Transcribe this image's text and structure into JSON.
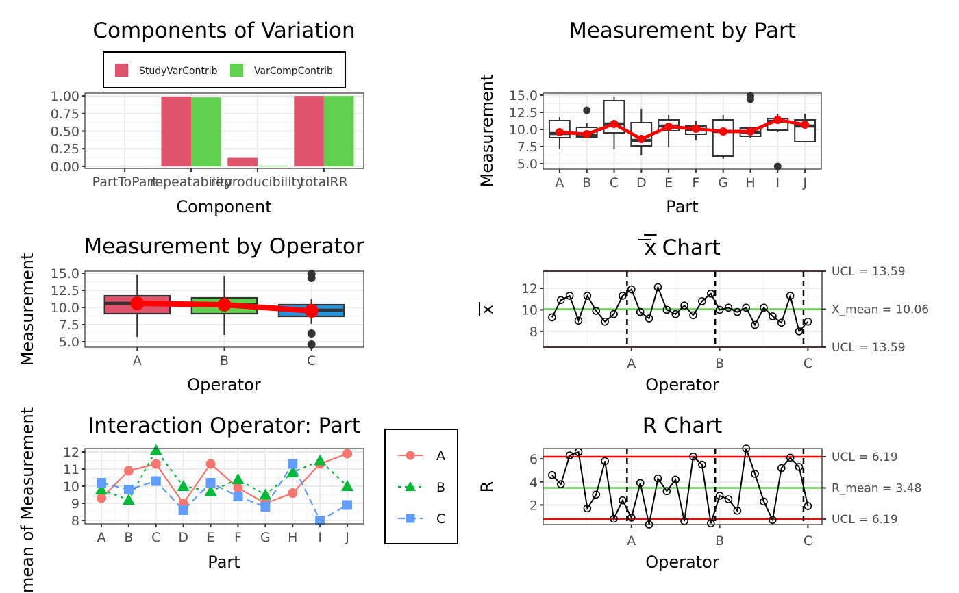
{
  "colors": {
    "study_var": "#DF536B",
    "var_comp": "#61D04F",
    "op_A": "#DF536B",
    "op_B": "#61D04F",
    "op_C": "#2297E6",
    "mean_line": "#FF0000",
    "center_line": "#61D04F",
    "control_limit": "#FF0000",
    "inter_A": "#F8766D",
    "inter_B": "#00BA38",
    "inter_C": "#619CFF"
  },
  "chart_data": [
    {
      "id": "components",
      "type": "bar",
      "title": "Components of Variation",
      "xlabel": "Component",
      "ylabel": "",
      "categories": [
        "PartToPart",
        "repeatability",
        "reproducibility",
        "totalRR"
      ],
      "series": [
        {
          "name": "StudyVarContrib",
          "values": [
            0.0,
            0.99,
            0.12,
            1.0
          ]
        },
        {
          "name": "VarCompContrib",
          "values": [
            0.0,
            0.98,
            0.01,
            1.0
          ]
        }
      ],
      "ylim": [
        -0.03,
        1.04
      ],
      "yticks": [
        0,
        0.25,
        0.5,
        0.75,
        1.0
      ],
      "ytick_labels": [
        "0.00",
        "0.25",
        "0.50",
        "0.75",
        "1.00"
      ],
      "legend": {
        "position": "top",
        "entries": [
          "StudyVarContrib",
          "VarCompContrib"
        ]
      },
      "grid": true
    },
    {
      "id": "by_part",
      "type": "box",
      "title": "Measurement by Part",
      "xlabel": "Part",
      "ylabel": "Measurement",
      "categories": [
        "A",
        "B",
        "C",
        "D",
        "E",
        "F",
        "G",
        "H",
        "I",
        "J"
      ],
      "boxes": [
        {
          "low": 7.1,
          "q1": 8.8,
          "median": 9.4,
          "q3": 11.3,
          "high": 11.8,
          "outliers": [],
          "mean": 9.6
        },
        {
          "low": 8.9,
          "q1": 8.9,
          "median": 9.1,
          "q3": 10.3,
          "high": 10.9,
          "outliers": [
            12.8
          ],
          "mean": 9.3
        },
        {
          "low": 7.1,
          "q1": 9.5,
          "median": 10.8,
          "q3": 14.2,
          "high": 14.8,
          "outliers": [],
          "mean": 10.8
        },
        {
          "low": 6.2,
          "q1": 7.6,
          "median": 8.4,
          "q3": 11.0,
          "high": 13.0,
          "outliers": [],
          "mean": 8.6
        },
        {
          "low": 7.4,
          "q1": 9.8,
          "median": 10.5,
          "q3": 11.4,
          "high": 12.1,
          "outliers": [],
          "mean": 10.4
        },
        {
          "low": 8.4,
          "q1": 9.3,
          "median": 10.0,
          "q3": 10.5,
          "high": 11.2,
          "outliers": [],
          "mean": 10.1
        },
        {
          "low": 5.7,
          "q1": 6.1,
          "median": 9.7,
          "q3": 11.4,
          "high": 12.1,
          "outliers": [],
          "mean": 9.7
        },
        {
          "low": 8.8,
          "q1": 9.0,
          "median": 9.6,
          "q3": 10.2,
          "high": 10.2,
          "outliers": [
            14.4,
            14.9
          ],
          "mean": 9.7
        },
        {
          "low": 9.6,
          "q1": 9.9,
          "median": 11.2,
          "q3": 11.6,
          "high": 12.3,
          "outliers": [
            4.6
          ],
          "mean": 11.4
        },
        {
          "low": 8.2,
          "q1": 8.2,
          "median": 10.5,
          "q3": 11.4,
          "high": 12.3,
          "outliers": [],
          "mean": 10.7
        }
      ],
      "ylim": [
        4.2,
        15.3
      ],
      "yticks": [
        5,
        7.5,
        10,
        12.5,
        15
      ],
      "ytick_labels": [
        "5.0",
        "7.5",
        "10.0",
        "12.5",
        "15.0"
      ],
      "grid": true
    },
    {
      "id": "by_operator",
      "type": "box",
      "title": "Measurement by Operator",
      "xlabel": "Operator",
      "ylabel": "Measurement",
      "categories": [
        "A",
        "B",
        "C"
      ],
      "boxes": [
        {
          "low": 5.7,
          "q1": 9.1,
          "median": 10.6,
          "q3": 11.7,
          "high": 14.8,
          "outliers": [],
          "mean": 10.6
        },
        {
          "low": 6.0,
          "q1": 9.1,
          "median": 10.4,
          "q3": 11.4,
          "high": 14.6,
          "outliers": [],
          "mean": 10.4
        },
        {
          "low": 7.6,
          "q1": 8.7,
          "median": 9.6,
          "q3": 10.4,
          "high": 11.3,
          "outliers": [
            4.6,
            6.2,
            14.3,
            14.9
          ],
          "mean": 9.5
        }
      ],
      "ylim": [
        4.2,
        15.3
      ],
      "yticks": [
        5,
        7.5,
        10,
        12.5,
        15
      ],
      "ytick_labels": [
        "5.0",
        "7.5",
        "10.0",
        "12.5",
        "15.0"
      ],
      "grid": true
    },
    {
      "id": "xbar",
      "type": "line",
      "title": "x̄ Chart",
      "title_bar": "x",
      "title_rest": "Chart",
      "xlabel": "Operator",
      "ylabel": "x",
      "x": [
        1,
        2,
        3,
        4,
        5,
        6,
        7,
        8,
        9,
        10,
        11,
        12,
        13,
        14,
        15,
        16,
        17,
        18,
        19,
        20,
        21,
        22,
        23,
        24,
        25,
        26,
        27,
        28,
        29,
        30
      ],
      "values": [
        9.3,
        10.9,
        11.3,
        9.0,
        11.3,
        9.9,
        8.9,
        9.6,
        11.3,
        11.9,
        9.8,
        9.2,
        12.1,
        10.0,
        9.6,
        10.4,
        9.5,
        10.8,
        11.5,
        10.0,
        10.2,
        9.8,
        10.2,
        8.6,
        10.2,
        9.4,
        8.8,
        11.3,
        8.0,
        8.9
      ],
      "center": 10.06,
      "ucl": 13.59,
      "lcl": 6.53,
      "group_dividers": [
        9.5,
        19.5,
        29.5
      ],
      "xticks": [
        10,
        20,
        30
      ],
      "xtick_labels": [
        "A",
        "B",
        "C"
      ],
      "yticks": [
        8,
        10,
        12
      ],
      "ytick_labels": [
        "8",
        "10",
        "12"
      ],
      "ylim": [
        6.53,
        13.59
      ],
      "xlim": [
        0.0,
        31.6
      ],
      "right_labels": [
        "UCL = 13.59",
        "X_mean = 10.06",
        "UCL = 13.59"
      ],
      "grid": true
    },
    {
      "id": "r_chart",
      "type": "line",
      "title": "R Chart",
      "xlabel": "Operator",
      "ylabel": "R",
      "x": [
        1,
        2,
        3,
        4,
        5,
        6,
        7,
        8,
        9,
        10,
        11,
        12,
        13,
        14,
        15,
        16,
        17,
        18,
        19,
        20,
        21,
        22,
        23,
        24,
        25,
        26,
        27,
        28,
        29,
        30
      ],
      "values": [
        4.6,
        3.8,
        6.3,
        6.6,
        1.7,
        2.9,
        5.8,
        0.8,
        2.4,
        0.9,
        3.9,
        0.3,
        4.3,
        3.2,
        4.2,
        0.6,
        6.2,
        5.5,
        0.4,
        2.8,
        2.5,
        1.5,
        6.9,
        4.7,
        2.3,
        0.7,
        5.2,
        6.1,
        5.3,
        1.9
      ],
      "center": 3.48,
      "ucl": 6.19,
      "lcl": 0.77,
      "group_dividers": [
        9.5,
        19.5,
        29.5
      ],
      "xticks": [
        10,
        20,
        30
      ],
      "xtick_labels": [
        "A",
        "B",
        "C"
      ],
      "yticks": [
        2,
        4,
        6
      ],
      "ytick_labels": [
        "2",
        "4",
        "6"
      ],
      "ylim": [
        0.3,
        6.9
      ],
      "xlim": [
        0.0,
        31.6
      ],
      "right_labels": [
        "UCL = 6.19",
        "R_mean = 3.48",
        "UCL = 6.19"
      ],
      "grid": true
    },
    {
      "id": "interaction",
      "type": "line",
      "title": "Interaction Operator: Part",
      "xlabel": "Part",
      "ylabel": "mean of Measurement",
      "categories": [
        "A",
        "B",
        "C",
        "D",
        "E",
        "F",
        "G",
        "H",
        "I",
        "J"
      ],
      "series": [
        {
          "name": "A",
          "values": [
            9.3,
            10.9,
            11.3,
            9.0,
            11.3,
            9.9,
            9.0,
            9.6,
            11.3,
            11.9
          ],
          "marker": "circle",
          "linestyle": "solid"
        },
        {
          "name": "B",
          "values": [
            9.8,
            9.2,
            12.1,
            10.0,
            9.7,
            10.4,
            9.5,
            10.8,
            11.5,
            10.0
          ],
          "marker": "triangle",
          "linestyle": "dotted"
        },
        {
          "name": "C",
          "values": [
            10.2,
            9.8,
            10.3,
            8.6,
            10.2,
            9.4,
            8.8,
            11.3,
            8.0,
            8.9
          ],
          "marker": "square",
          "linestyle": "dashed"
        }
      ],
      "ylim": [
        7.8,
        12.2
      ],
      "yticks": [
        8,
        9,
        10,
        11,
        12
      ],
      "ytick_labels": [
        "8",
        "9",
        "10",
        "11",
        "12"
      ],
      "legend": {
        "position": "right",
        "entries": [
          "A",
          "B",
          "C"
        ]
      },
      "grid": true
    }
  ]
}
